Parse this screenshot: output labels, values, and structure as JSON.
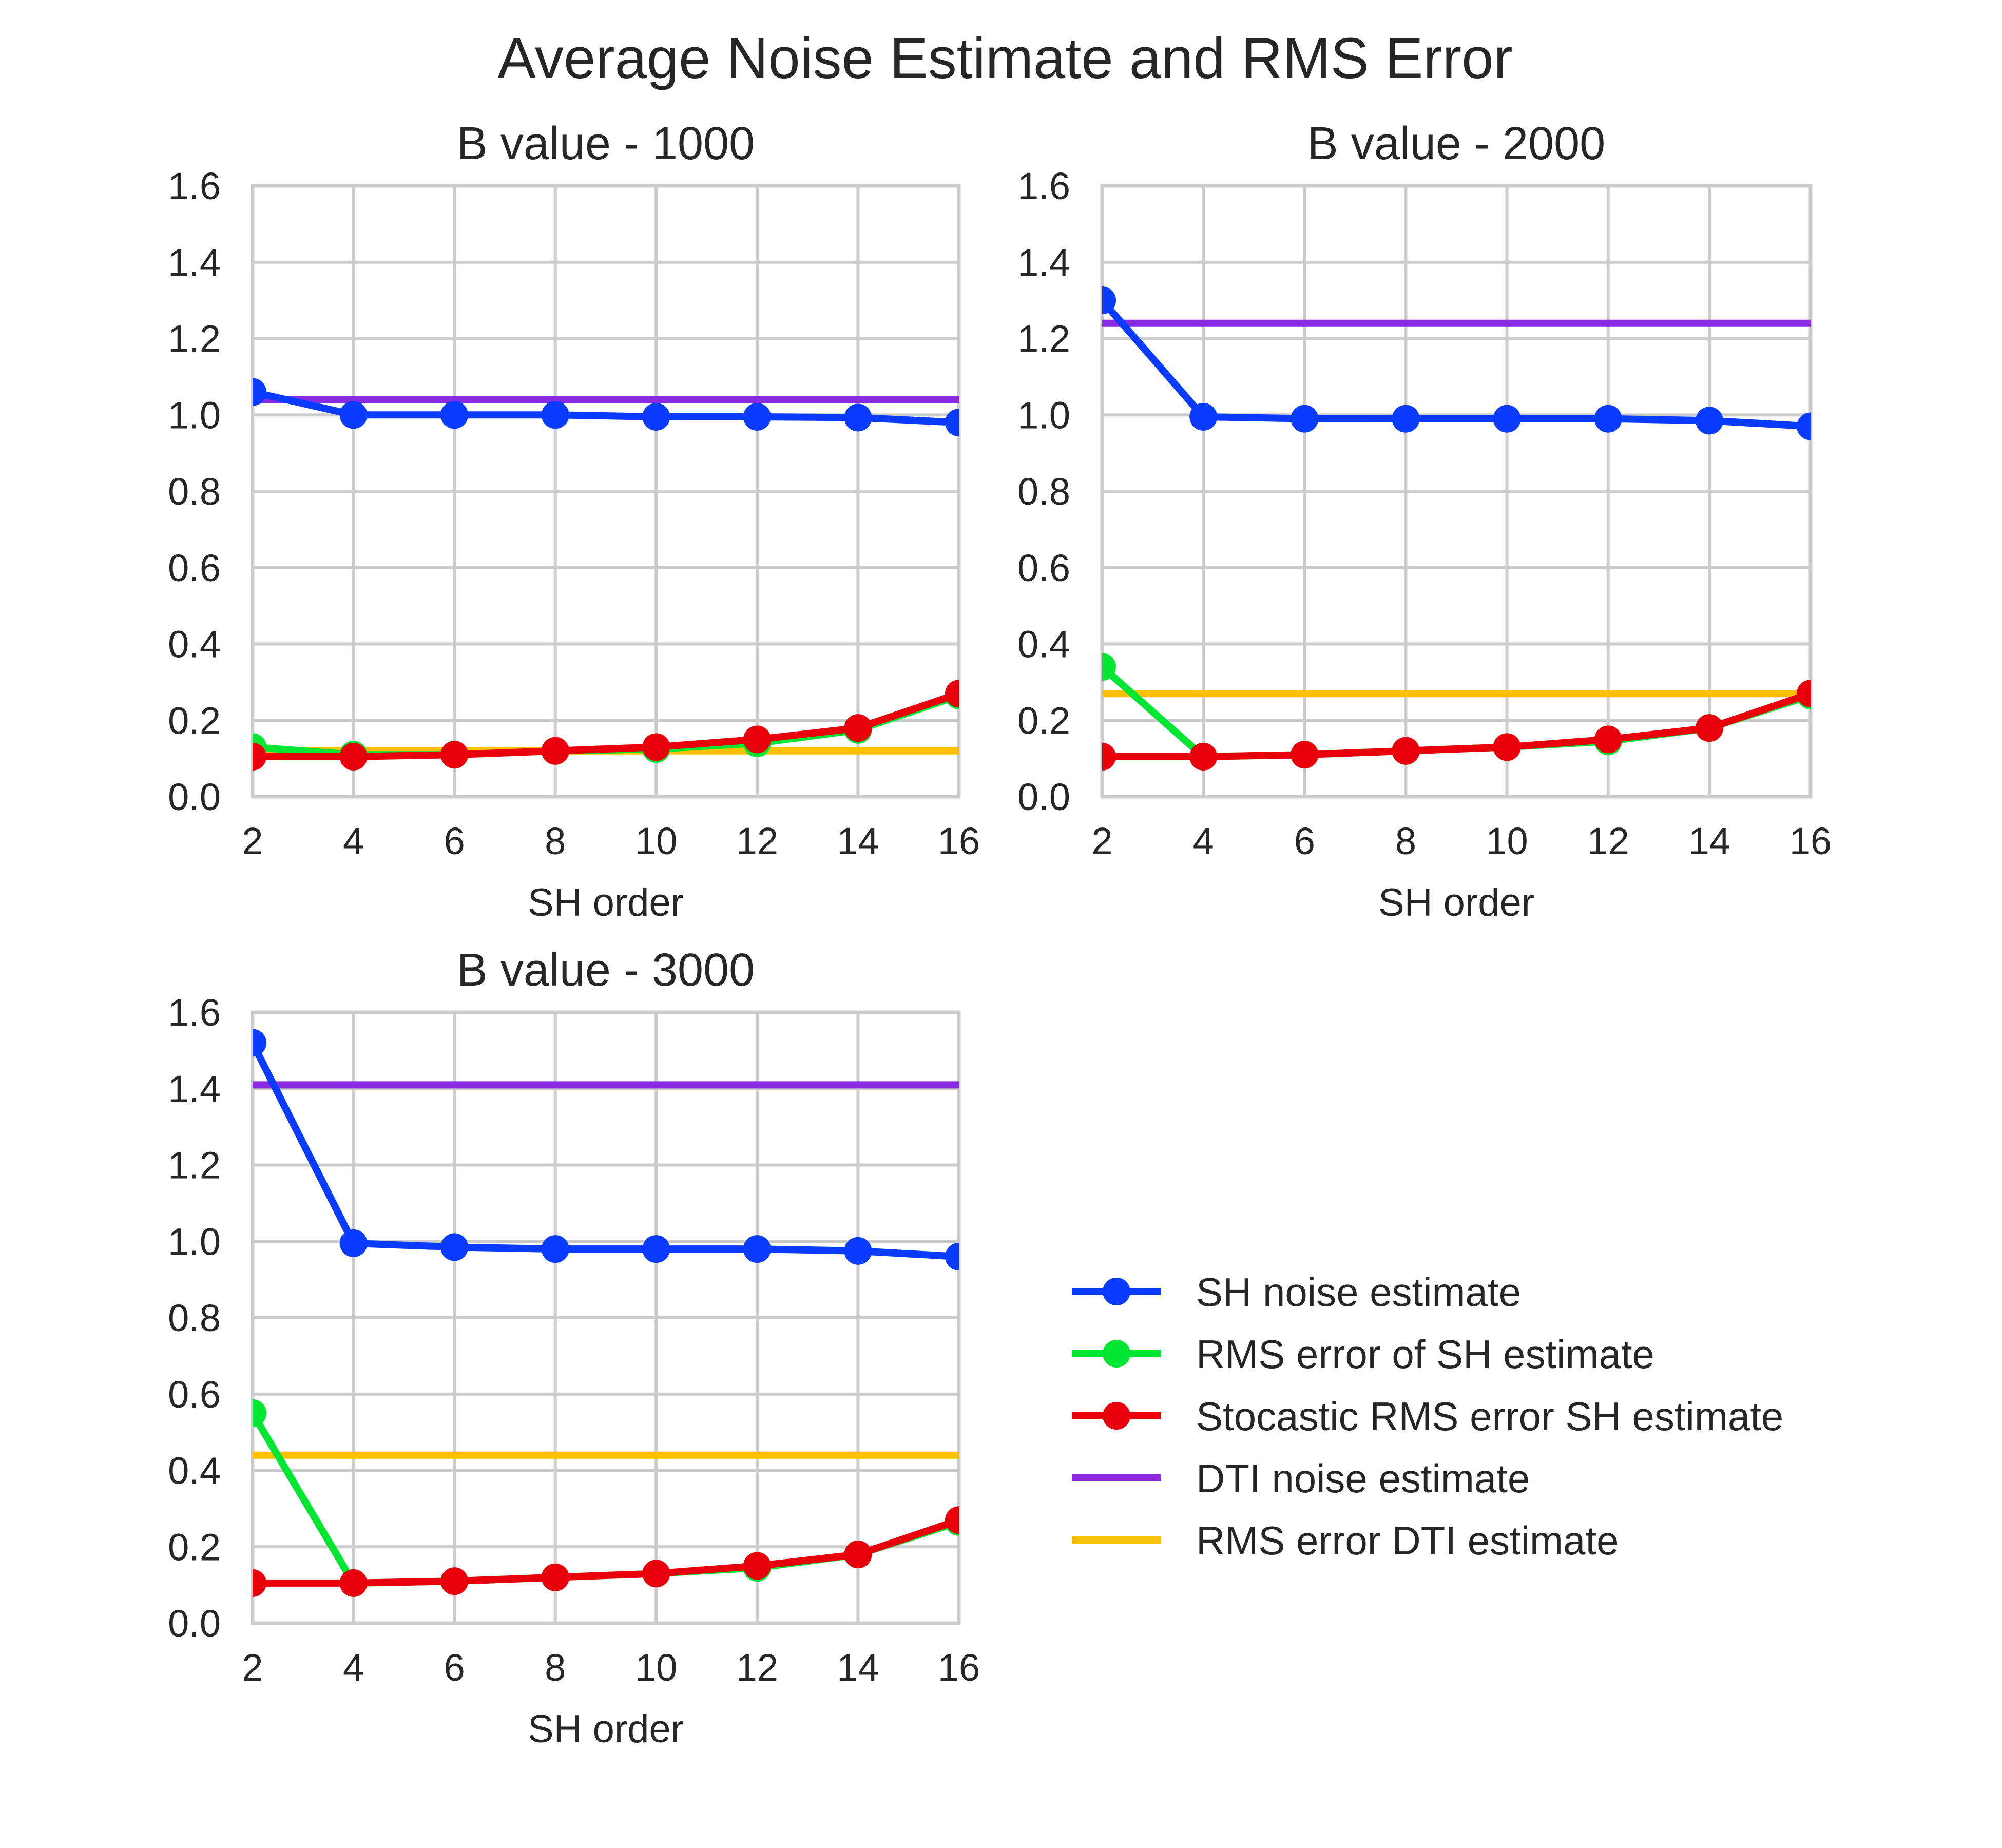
{
  "title": "Average Noise Estimate and RMS Error",
  "colors": {
    "SH noise estimate": "#0a3cff",
    "RMS error of SH estimate": "#00e632",
    "Stocastic RMS error SH estimate": "#e8000b",
    "DTI noise estimate": "#8a2be2",
    "RMS error DTI estimate": "#ffc000"
  },
  "legend": {
    "placement": "right of third panel",
    "entries": [
      {
        "label": "SH noise estimate",
        "marker": true
      },
      {
        "label": "RMS error of SH estimate",
        "marker": true
      },
      {
        "label": "Stocastic RMS error SH estimate",
        "marker": true
      },
      {
        "label": "DTI noise estimate",
        "marker": false
      },
      {
        "label": "RMS error DTI estimate",
        "marker": false
      }
    ]
  },
  "chart_data": [
    {
      "type": "line",
      "title": "B value - 1000",
      "xlabel": "SH order",
      "ylabel": "",
      "xlim": [
        2,
        16
      ],
      "ylim": [
        0,
        1.6
      ],
      "xticks": [
        "2",
        "4",
        "6",
        "8",
        "10",
        "12",
        "14",
        "16"
      ],
      "yticks": [
        "0.0",
        "0.2",
        "0.4",
        "0.6",
        "0.8",
        "1.0",
        "1.2",
        "1.4",
        "1.6"
      ],
      "grid": true,
      "x": [
        2,
        4,
        6,
        8,
        10,
        12,
        14,
        16
      ],
      "series": [
        {
          "name": "SH noise estimate",
          "values": [
            1.06,
            1.0,
            1.0,
            1.0,
            0.995,
            0.995,
            0.993,
            0.98
          ]
        },
        {
          "name": "RMS error of SH estimate",
          "values": [
            0.13,
            0.11,
            0.11,
            0.12,
            0.125,
            0.14,
            0.175,
            0.265
          ]
        },
        {
          "name": "Stocastic RMS error SH estimate",
          "values": [
            0.105,
            0.105,
            0.11,
            0.12,
            0.13,
            0.15,
            0.18,
            0.27
          ]
        },
        {
          "name": "DTI noise estimate",
          "constant": 1.04
        },
        {
          "name": "RMS error DTI estimate",
          "constant": 0.12
        }
      ]
    },
    {
      "type": "line",
      "title": "B value - 2000",
      "xlabel": "SH order",
      "ylabel": "",
      "xlim": [
        2,
        16
      ],
      "ylim": [
        0,
        1.6
      ],
      "xticks": [
        "2",
        "4",
        "6",
        "8",
        "10",
        "12",
        "14",
        "16"
      ],
      "yticks": [
        "0.0",
        "0.2",
        "0.4",
        "0.6",
        "0.8",
        "1.0",
        "1.2",
        "1.4",
        "1.6"
      ],
      "grid": true,
      "x": [
        2,
        4,
        6,
        8,
        10,
        12,
        14,
        16
      ],
      "series": [
        {
          "name": "SH noise estimate",
          "values": [
            1.3,
            0.995,
            0.99,
            0.99,
            0.99,
            0.99,
            0.985,
            0.97
          ]
        },
        {
          "name": "RMS error of SH estimate",
          "values": [
            0.34,
            0.105,
            0.11,
            0.12,
            0.13,
            0.145,
            0.18,
            0.265
          ]
        },
        {
          "name": "Stocastic RMS error SH estimate",
          "values": [
            0.105,
            0.105,
            0.11,
            0.12,
            0.13,
            0.15,
            0.18,
            0.27
          ]
        },
        {
          "name": "DTI noise estimate",
          "constant": 1.24
        },
        {
          "name": "RMS error DTI estimate",
          "constant": 0.27
        }
      ]
    },
    {
      "type": "line",
      "title": "B value - 3000",
      "xlabel": "SH order",
      "ylabel": "",
      "xlim": [
        2,
        16
      ],
      "ylim": [
        0,
        1.6
      ],
      "xticks": [
        "2",
        "4",
        "6",
        "8",
        "10",
        "12",
        "14",
        "16"
      ],
      "yticks": [
        "0.0",
        "0.2",
        "0.4",
        "0.6",
        "0.8",
        "1.0",
        "1.2",
        "1.4",
        "1.6"
      ],
      "grid": true,
      "x": [
        2,
        4,
        6,
        8,
        10,
        12,
        14,
        16
      ],
      "series": [
        {
          "name": "SH noise estimate",
          "values": [
            1.52,
            0.995,
            0.985,
            0.98,
            0.98,
            0.98,
            0.975,
            0.96
          ]
        },
        {
          "name": "RMS error of SH estimate",
          "values": [
            0.55,
            0.105,
            0.11,
            0.12,
            0.13,
            0.145,
            0.18,
            0.265
          ]
        },
        {
          "name": "Stocastic RMS error SH estimate",
          "values": [
            0.105,
            0.105,
            0.11,
            0.12,
            0.13,
            0.15,
            0.18,
            0.27
          ]
        },
        {
          "name": "DTI noise estimate",
          "constant": 1.41
        },
        {
          "name": "RMS error DTI estimate",
          "constant": 0.44
        }
      ]
    }
  ]
}
